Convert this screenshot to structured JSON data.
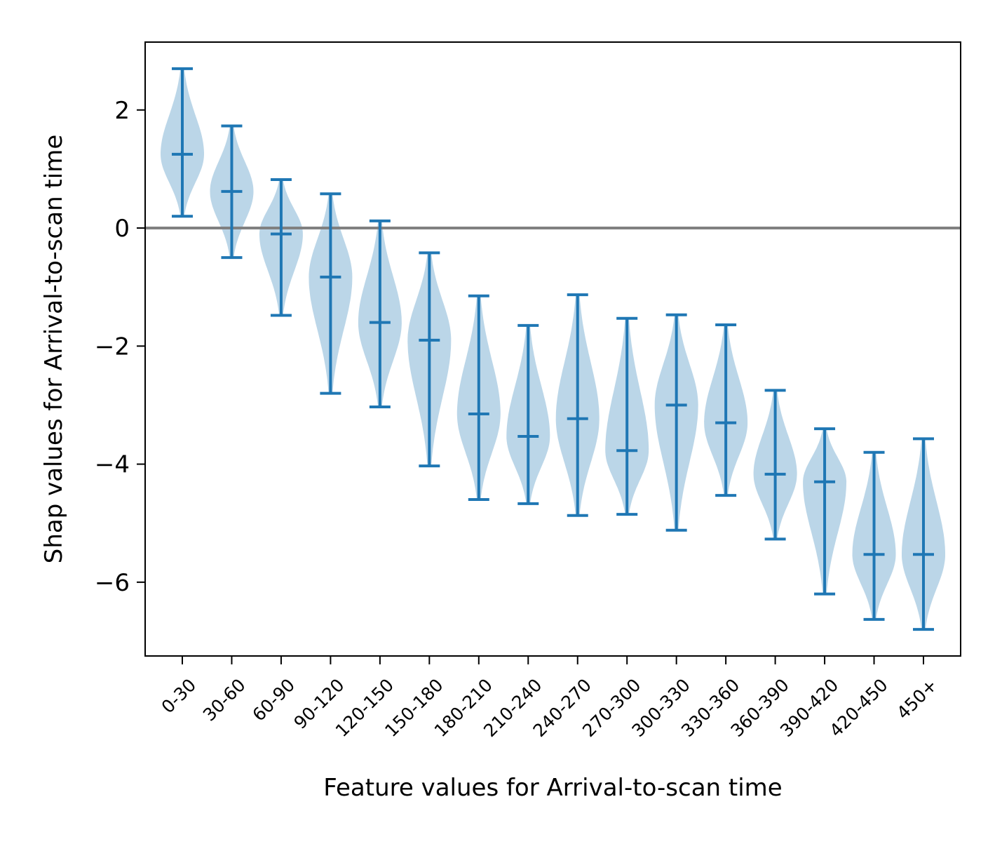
{
  "chart_data": {
    "type": "violin",
    "xlabel": "Feature values for Arrival-to-scan time",
    "ylabel": "Shap values for Arrival-to-scan time",
    "ylim": [
      -7.25,
      3.15
    ],
    "yticks": [
      2,
      0,
      -2,
      -4,
      -6
    ],
    "ytick_labels": [
      "2",
      "0",
      "−2",
      "−4",
      "−6"
    ],
    "reference_line": 0,
    "grid": false,
    "colors": {
      "violin_fill": "#1f77b4",
      "violin_opacity": 0.3,
      "whisker": "#1f77b4",
      "reference_line": "#808080"
    },
    "categories": [
      "0-30",
      "30-60",
      "60-90",
      "90-120",
      "120-150",
      "150-180",
      "180-210",
      "210-240",
      "240-270",
      "270-300",
      "300-330",
      "330-360",
      "360-390",
      "390-420",
      "420-450",
      "450+"
    ],
    "max": [
      2.7,
      1.73,
      0.82,
      0.58,
      0.12,
      -0.42,
      -1.15,
      -1.65,
      -1.13,
      -1.53,
      -1.47,
      -1.64,
      -2.75,
      -3.4,
      -3.8,
      -3.57
    ],
    "median": [
      1.25,
      0.62,
      -0.1,
      -0.83,
      -1.6,
      -1.9,
      -3.15,
      -3.53,
      -3.23,
      -3.77,
      -3.0,
      -3.3,
      -4.17,
      -4.3,
      -5.53,
      -5.53
    ],
    "min": [
      0.2,
      -0.5,
      -1.48,
      -2.8,
      -3.03,
      -4.03,
      -4.6,
      -4.67,
      -4.87,
      -4.85,
      -5.12,
      -4.53,
      -5.27,
      -6.2,
      -6.63,
      -6.8
    ]
  }
}
